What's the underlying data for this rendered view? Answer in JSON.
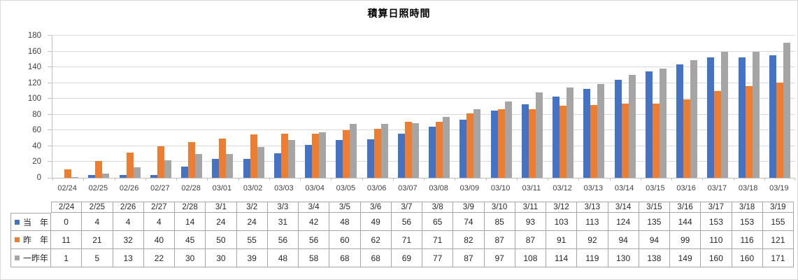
{
  "chart_data": {
    "type": "bar",
    "title": "積算日照時間",
    "xlabel": "",
    "ylabel": "",
    "ylim": [
      0,
      180
    ],
    "ytick_step": 20,
    "yticks": [
      0,
      20,
      40,
      60,
      80,
      100,
      120,
      140,
      160,
      180
    ],
    "grid": true,
    "legend_position": "data-table-left",
    "x_labels": [
      "02/24",
      "02/25",
      "02/26",
      "02/27",
      "02/28",
      "03/01",
      "03/02",
      "03/03",
      "03/04",
      "03/05",
      "03/06",
      "03/07",
      "03/08",
      "03/09",
      "03/10",
      "03/11",
      "03/12",
      "03/13",
      "03/14",
      "03/15",
      "03/16",
      "03/17",
      "03/18",
      "03/19"
    ],
    "table_headers": [
      "2/24",
      "2/25",
      "2/26",
      "2/27",
      "2/28",
      "3/1",
      "3/2",
      "3/3",
      "3/4",
      "3/5",
      "3/6",
      "3/7",
      "3/8",
      "3/9",
      "3/10",
      "3/11",
      "3/12",
      "3/13",
      "3/14",
      "3/15",
      "3/16",
      "3/17",
      "3/18",
      "3/19"
    ],
    "series": [
      {
        "name": "当　年",
        "color": "#4472C4",
        "values": [
          0,
          4,
          4,
          4,
          14,
          24,
          24,
          31,
          42,
          48,
          49,
          56,
          65,
          74,
          85,
          93,
          103,
          113,
          124,
          135,
          144,
          153,
          153,
          155
        ]
      },
      {
        "name": "昨　年",
        "color": "#ED7D31",
        "values": [
          11,
          21,
          32,
          40,
          45,
          50,
          55,
          56,
          56,
          60,
          62,
          71,
          71,
          82,
          87,
          87,
          91,
          92,
          94,
          94,
          99,
          110,
          116,
          121
        ]
      },
      {
        "name": "一昨年",
        "color": "#A5A5A5",
        "values": [
          1,
          5,
          13,
          22,
          30,
          30,
          39,
          48,
          58,
          68,
          68,
          69,
          77,
          87,
          97,
          108,
          114,
          119,
          130,
          138,
          149,
          160,
          160,
          171
        ]
      }
    ]
  },
  "colors": {
    "background": "#FFFFFF",
    "gridline": "#D9D9D9",
    "axis": "#BFBFBF",
    "table_border": "#A6A6A6",
    "axis_text": "#404040",
    "table_text": "#262626",
    "title_text": "#000000"
  }
}
